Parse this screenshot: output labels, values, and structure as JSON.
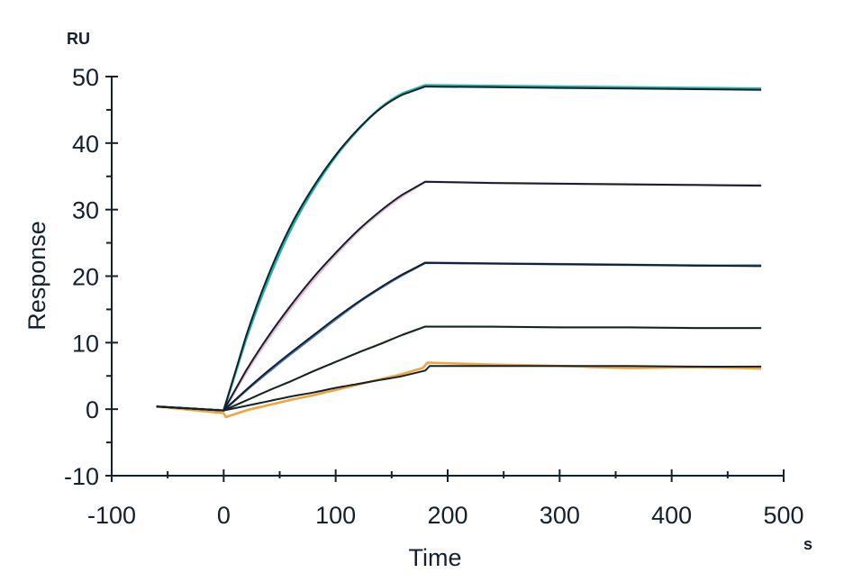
{
  "chart_data": {
    "type": "line",
    "title": "",
    "xlabel": "Time",
    "ylabel": "Response",
    "x_unit": "s",
    "y_unit": "RU",
    "xlim": [
      -100,
      500
    ],
    "ylim": [
      -10,
      50
    ],
    "x_ticks": [
      -100,
      0,
      100,
      200,
      300,
      400,
      500
    ],
    "y_ticks": [
      -10,
      0,
      10,
      20,
      30,
      40,
      50
    ],
    "x_tick_labels": [
      "-100",
      "0",
      "100",
      "200",
      "300",
      "400",
      "500"
    ],
    "y_tick_labels": [
      "-10",
      "0",
      "10",
      "20",
      "30",
      "40",
      "50"
    ],
    "grid": false,
    "legend": null,
    "axis_color": "#13202f",
    "fit_color": "#13202f",
    "series": [
      {
        "name": "curve-1",
        "color": "#1fb5a8",
        "x": [
          -60,
          0,
          20,
          40,
          60,
          80,
          100,
          120,
          140,
          160,
          180,
          240,
          300,
          360,
          420,
          480
        ],
        "y": [
          0.4,
          -0.2,
          10.5,
          19.5,
          27.0,
          33.0,
          38.0,
          42.0,
          45.3,
          47.5,
          48.7,
          48.6,
          48.5,
          48.4,
          48.3,
          48.2
        ]
      },
      {
        "name": "curve-2",
        "color": "#e6b8d2",
        "x": [
          -60,
          0,
          20,
          40,
          60,
          80,
          100,
          120,
          140,
          160,
          180,
          240,
          300,
          360,
          420,
          480
        ],
        "y": [
          0.4,
          -0.2,
          5.5,
          10.6,
          15.2,
          19.4,
          23.2,
          26.7,
          29.6,
          32.1,
          34.2,
          34.0,
          33.9,
          33.8,
          33.7,
          33.7
        ]
      },
      {
        "name": "curve-3",
        "color": "#4a78b8",
        "x": [
          -60,
          0,
          20,
          40,
          60,
          80,
          100,
          120,
          140,
          160,
          180,
          240,
          300,
          360,
          420,
          480
        ],
        "y": [
          0.4,
          -0.2,
          2.8,
          5.6,
          8.3,
          10.9,
          13.5,
          16.0,
          18.2,
          20.2,
          22.0,
          21.9,
          21.8,
          21.7,
          21.6,
          21.6
        ]
      },
      {
        "name": "curve-4",
        "color": "#d9e59a",
        "x": [
          -60,
          0,
          20,
          40,
          60,
          80,
          100,
          120,
          140,
          160,
          180,
          240,
          300,
          360,
          420,
          480
        ],
        "y": [
          0.4,
          -0.2,
          1.3,
          2.8,
          4.2,
          5.7,
          7.1,
          8.5,
          9.9,
          11.2,
          12.5,
          12.4,
          12.3,
          12.3,
          12.2,
          12.2
        ]
      },
      {
        "name": "curve-5",
        "color": "#f0a53a",
        "x": [
          -60,
          0,
          2,
          20,
          40,
          60,
          80,
          100,
          120,
          140,
          160,
          178,
          182,
          240,
          300,
          360,
          420,
          480
        ],
        "y": [
          0.4,
          -0.6,
          -1.2,
          -0.2,
          0.6,
          1.4,
          2.1,
          2.9,
          3.7,
          4.5,
          5.3,
          6.2,
          7.0,
          6.7,
          6.5,
          6.2,
          6.3,
          6.1
        ]
      },
      {
        "name": "fit-1",
        "color": "#13202f",
        "x": [
          -60,
          0,
          20,
          40,
          60,
          80,
          100,
          120,
          140,
          160,
          180,
          240,
          300,
          360,
          420,
          480
        ],
        "y": [
          0.4,
          -0.2,
          11.0,
          20.2,
          27.6,
          33.4,
          38.2,
          42.1,
          45.2,
          47.3,
          48.5,
          48.4,
          48.3,
          48.2,
          48.1,
          48.0
        ]
      },
      {
        "name": "fit-2",
        "color": "#13202f",
        "x": [
          -60,
          0,
          20,
          40,
          60,
          80,
          100,
          120,
          140,
          160,
          180,
          240,
          300,
          360,
          420,
          480
        ],
        "y": [
          0.4,
          -0.2,
          5.8,
          11.0,
          15.6,
          19.8,
          23.5,
          26.9,
          29.8,
          32.3,
          34.2,
          34.0,
          33.9,
          33.8,
          33.7,
          33.6
        ]
      },
      {
        "name": "fit-3",
        "color": "#13202f",
        "x": [
          -60,
          0,
          20,
          40,
          60,
          80,
          100,
          120,
          140,
          160,
          180,
          240,
          300,
          360,
          420,
          480
        ],
        "y": [
          0.4,
          -0.2,
          2.9,
          5.8,
          8.5,
          11.1,
          13.7,
          16.1,
          18.3,
          20.3,
          22.0,
          21.9,
          21.8,
          21.7,
          21.6,
          21.5
        ]
      },
      {
        "name": "fit-4",
        "color": "#13202f",
        "x": [
          -60,
          0,
          20,
          40,
          60,
          80,
          100,
          120,
          140,
          160,
          180,
          240,
          300,
          360,
          420,
          480
        ],
        "y": [
          0.4,
          -0.2,
          1.3,
          2.8,
          4.2,
          5.7,
          7.1,
          8.5,
          9.8,
          11.2,
          12.4,
          12.4,
          12.3,
          12.3,
          12.2,
          12.2
        ]
      },
      {
        "name": "fit-5",
        "color": "#13202f",
        "x": [
          -60,
          0,
          20,
          40,
          60,
          80,
          100,
          120,
          140,
          160,
          180,
          184,
          240,
          300,
          360,
          420,
          480
        ],
        "y": [
          0.4,
          -0.2,
          0.5,
          1.2,
          1.9,
          2.5,
          3.2,
          3.8,
          4.4,
          5.0,
          5.8,
          6.5,
          6.5,
          6.5,
          6.5,
          6.4,
          6.4
        ]
      }
    ]
  }
}
